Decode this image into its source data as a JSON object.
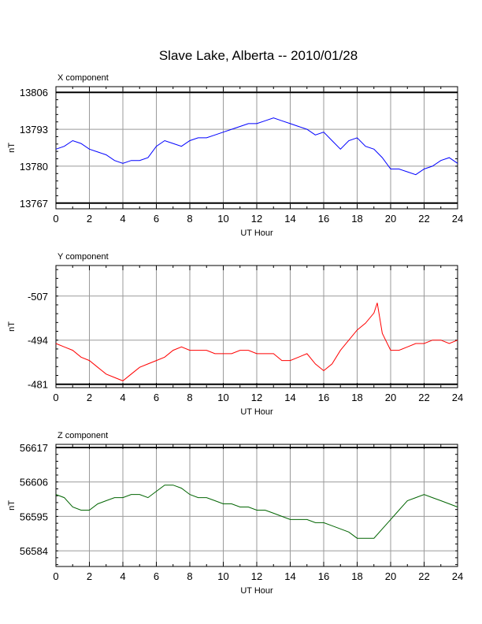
{
  "title": "Slave Lake, Alberta -- 2010/01/28",
  "chart_data": [
    {
      "type": "line",
      "panel_label": "X component",
      "xlabel": "UT Hour",
      "ylabel": "nT",
      "xlim": [
        0,
        24
      ],
      "ylim": [
        13765,
        13808
      ],
      "xticks": [
        0,
        2,
        4,
        6,
        8,
        10,
        12,
        14,
        16,
        18,
        20,
        22,
        24
      ],
      "yticks": [
        13806,
        13793,
        13780,
        13767
      ],
      "grid": true,
      "color": "#0000ff",
      "x": [
        0,
        0.5,
        1,
        1.5,
        2,
        2.5,
        3,
        3.5,
        4,
        4.5,
        5,
        5.5,
        6,
        6.5,
        7,
        7.5,
        8,
        8.5,
        9,
        9.5,
        10,
        10.5,
        11,
        11.5,
        12,
        12.5,
        13,
        13.5,
        14,
        14.5,
        15,
        15.5,
        16,
        16.5,
        17,
        17.5,
        18,
        18.5,
        19,
        19.5,
        20,
        20.5,
        21,
        21.5,
        22,
        22.5,
        23,
        23.5,
        24
      ],
      "y": [
        13786,
        13787,
        13789,
        13788,
        13786,
        13785,
        13784,
        13782,
        13781,
        13782,
        13782,
        13783,
        13787,
        13789,
        13788,
        13787,
        13789,
        13790,
        13790,
        13791,
        13792,
        13793,
        13794,
        13795,
        13795,
        13796,
        13797,
        13796,
        13795,
        13794,
        13793,
        13791,
        13792,
        13789,
        13786,
        13789,
        13790,
        13787,
        13786,
        13783,
        13779,
        13779,
        13778,
        13777,
        13779,
        13780,
        13782,
        13783,
        13781
      ]
    },
    {
      "type": "line",
      "panel_label": "Y component",
      "xlabel": "UT Hour",
      "ylabel": "nT",
      "xlim": [
        0,
        24
      ],
      "ylim": [
        -480,
        -516
      ],
      "xticks": [
        0,
        2,
        4,
        6,
        8,
        10,
        12,
        14,
        16,
        18,
        20,
        22,
        24
      ],
      "yticks": [
        -481,
        -494,
        -507
      ],
      "grid": true,
      "color": "#ff0000",
      "x": [
        0,
        0.5,
        1,
        1.5,
        2,
        2.5,
        3,
        3.5,
        4,
        4.5,
        5,
        5.5,
        6,
        6.5,
        7,
        7.5,
        8,
        8.5,
        9,
        9.5,
        10,
        10.5,
        11,
        11.5,
        12,
        12.5,
        13,
        13.5,
        14,
        14.5,
        15,
        15.5,
        16,
        16.5,
        17,
        17.5,
        18,
        18.5,
        19,
        19.2,
        19.5,
        20,
        20.5,
        21,
        21.5,
        22,
        22.5,
        23,
        23.5,
        24
      ],
      "y": [
        -493,
        -492,
        -491,
        -489,
        -488,
        -486,
        -484,
        -483,
        -482,
        -484,
        -486,
        -487,
        -488,
        -489,
        -491,
        -492,
        -491,
        -491,
        -491,
        -490,
        -490,
        -490,
        -491,
        -491,
        -490,
        -490,
        -490,
        -488,
        -488,
        -489,
        -490,
        -487,
        -485,
        -487,
        -491,
        -494,
        -497,
        -499,
        -502,
        -505,
        -496,
        -491,
        -491,
        -492,
        -493,
        -493,
        -494,
        -494,
        -493,
        -494
      ]
    },
    {
      "type": "line",
      "panel_label": "Z component",
      "xlabel": "UT Hour",
      "ylabel": "nT",
      "xlim": [
        0,
        24
      ],
      "ylim": [
        56579,
        56618
      ],
      "xticks": [
        0,
        2,
        4,
        6,
        8,
        10,
        12,
        14,
        16,
        18,
        20,
        22,
        24
      ],
      "yticks": [
        56617,
        56606,
        56595,
        56584
      ],
      "grid": true,
      "color": "#006400",
      "x": [
        0,
        0.5,
        1,
        1.5,
        2,
        2.5,
        3,
        3.5,
        4,
        4.5,
        5,
        5.5,
        6,
        6.5,
        7,
        7.5,
        8,
        8.5,
        9,
        9.5,
        10,
        10.5,
        11,
        11.5,
        12,
        12.5,
        13,
        13.5,
        14,
        14.5,
        15,
        15.5,
        16,
        16.5,
        17,
        17.5,
        18,
        18.5,
        19,
        19.5,
        20,
        20.5,
        21,
        21.5,
        22,
        22.5,
        23,
        23.5,
        24
      ],
      "y": [
        56602,
        56601,
        56598,
        56597,
        56597,
        56599,
        56600,
        56601,
        56601,
        56602,
        56602,
        56601,
        56603,
        56605,
        56605,
        56604,
        56602,
        56601,
        56601,
        56600,
        56599,
        56599,
        56598,
        56598,
        56597,
        56597,
        56596,
        56595,
        56594,
        56594,
        56594,
        56593,
        56593,
        56592,
        56591,
        56590,
        56588,
        56588,
        56588,
        56591,
        56594,
        56597,
        56600,
        56601,
        56602,
        56601,
        56600,
        56599,
        56598
      ]
    }
  ]
}
